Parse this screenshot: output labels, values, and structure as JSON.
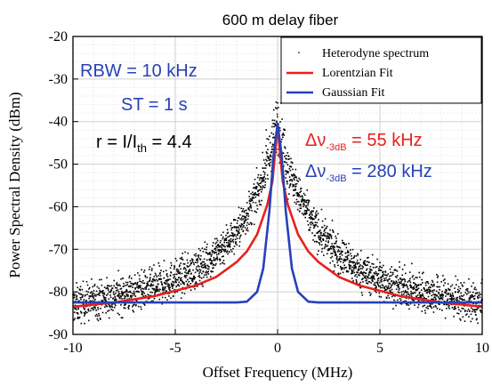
{
  "chart_data": {
    "type": "line",
    "title": "600 m delay fiber",
    "xlabel": "Offset Frequency (MHz)",
    "ylabel": "Power Spectral Density (dBm)",
    "xlim": [
      -10,
      10
    ],
    "ylim": [
      -90,
      -20
    ],
    "xticks": [
      -10,
      -5,
      0,
      5,
      10
    ],
    "yticks": [
      -20,
      -30,
      -40,
      -50,
      -60,
      -70,
      -80,
      -90
    ],
    "grid": true,
    "legend_position": "top-right",
    "series": [
      {
        "name": "Heterodyne spectrum",
        "style": "scatter",
        "color": "#000000",
        "x": [
          -10,
          -8,
          -6,
          -4,
          -3,
          -2,
          -1.5,
          -1,
          -0.5,
          -0.2,
          0,
          0.2,
          0.5,
          1,
          1.5,
          2,
          3,
          4,
          6,
          8,
          10
        ],
        "y": [
          -83,
          -81,
          -79,
          -75,
          -71,
          -66,
          -62,
          -57,
          -50,
          -45,
          -39,
          -45,
          -50,
          -57,
          -62,
          -66,
          -71,
          -75,
          -79,
          -81,
          -83
        ]
      },
      {
        "name": "Lorentzian Fit",
        "style": "line",
        "color": "#e8201c",
        "x": [
          -10,
          -8,
          -6,
          -4,
          -3,
          -2,
          -1.5,
          -1,
          -0.5,
          -0.25,
          0,
          0.25,
          0.5,
          1,
          1.5,
          2,
          3,
          4,
          6,
          8,
          10
        ],
        "y": [
          -83.5,
          -82.5,
          -81,
          -78.5,
          -76.5,
          -73,
          -70.5,
          -66.5,
          -59.5,
          -54,
          -41,
          -54,
          -59.5,
          -66.5,
          -70.5,
          -73,
          -76.5,
          -78.5,
          -81,
          -82.5,
          -83.5
        ]
      },
      {
        "name": "Gaussian Fit",
        "style": "line",
        "color": "#2741b8",
        "x": [
          -10,
          -3,
          -2,
          -1.5,
          -1,
          -0.7,
          -0.4,
          -0.2,
          0,
          0.2,
          0.4,
          0.7,
          1,
          1.5,
          2,
          3,
          10
        ],
        "y": [
          -82.5,
          -82.5,
          -82.5,
          -82.3,
          -80,
          -74.5,
          -61,
          -48,
          -40.5,
          -48,
          -61,
          -74.5,
          -80,
          -82.3,
          -82.5,
          -82.5,
          -82.5
        ]
      }
    ],
    "annotations": {
      "rbw": "RBW =  10 kHz",
      "st": "ST = 1 s",
      "r_prefix": "r = I/I",
      "r_sub": "th",
      "r_suffix": " = 4.4",
      "delta_symbol": "Δν",
      "delta_sub": "-3dB",
      "lorentz_value": " = 55 kHz",
      "gauss_value": " = 280 kHz",
      "lorentz_color": "#e8201c",
      "gauss_color": "#2741b8",
      "rbw_color": "#2741b8"
    }
  }
}
